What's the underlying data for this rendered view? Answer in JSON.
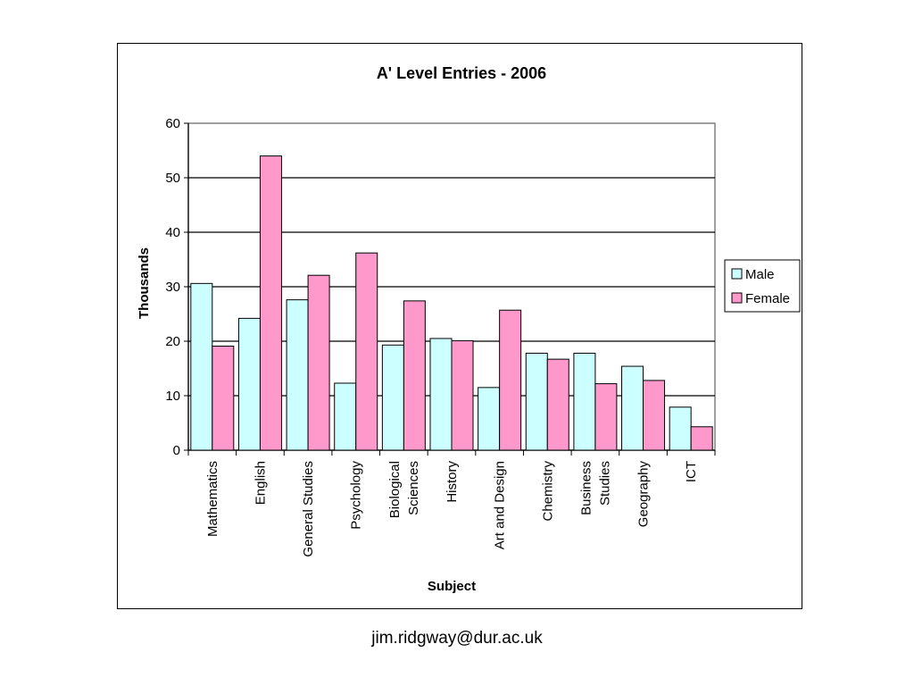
{
  "chart_data": {
    "type": "bar",
    "title": "A' Level Entries - 2006",
    "xlabel": "Subject",
    "ylabel": "Thousands",
    "ylim": [
      0,
      60
    ],
    "yticks": [
      0,
      10,
      20,
      30,
      40,
      50,
      60
    ],
    "grid": true,
    "legend_position": "right",
    "categories": [
      [
        "Mathematics"
      ],
      [
        "English"
      ],
      [
        "General Studies"
      ],
      [
        "Psychology"
      ],
      [
        "Biological",
        "Sciences"
      ],
      [
        "History"
      ],
      [
        "Art and Design"
      ],
      [
        "Chemistry"
      ],
      [
        "Business",
        "Studies"
      ],
      [
        "Geography"
      ],
      [
        "ICT"
      ]
    ],
    "series": [
      {
        "name": "Male",
        "color": "#ccffff",
        "values": [
          30.6,
          24.2,
          27.6,
          12.3,
          19.3,
          20.5,
          11.5,
          17.8,
          17.8,
          15.4,
          7.9
        ]
      },
      {
        "name": "Female",
        "color": "#ff99cc",
        "values": [
          19.1,
          54.0,
          32.1,
          36.2,
          27.4,
          20.1,
          25.7,
          16.7,
          12.2,
          12.8,
          4.3
        ]
      }
    ]
  },
  "footer": {
    "email": "jim.ridgway@dur.ac.uk"
  }
}
